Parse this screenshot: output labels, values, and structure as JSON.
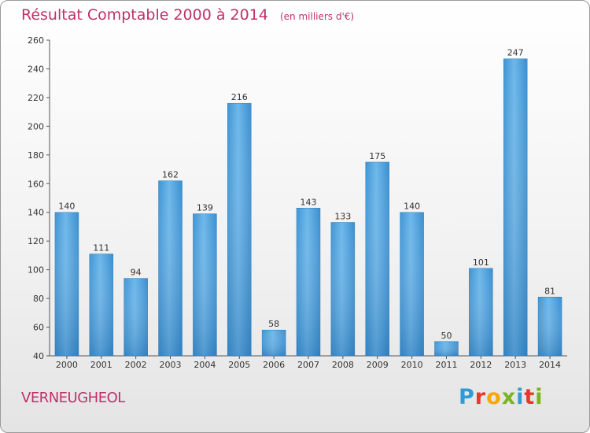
{
  "header": {
    "title": "Résultat Comptable 2000 à 2014",
    "subtitle": "(en milliers d'€)"
  },
  "footer": {
    "commune": "VERNEUGHEOL",
    "logo": "Proxiti",
    "logo_letters": [
      "P",
      "r",
      "o",
      "x",
      "i",
      "t",
      "i"
    ],
    "logo_colors": [
      "#2f9bd6",
      "#e8372c",
      "#f6a800",
      "#7ab51d",
      "#2f9bd6",
      "#e8372c",
      "#7ab51d"
    ]
  },
  "chart_data": {
    "type": "bar",
    "title": "Résultat Comptable 2000 à 2014",
    "subtitle": "(en milliers d'€)",
    "xlabel": "",
    "ylabel": "",
    "categories": [
      "2000",
      "2001",
      "2002",
      "2003",
      "2004",
      "2005",
      "2006",
      "2007",
      "2008",
      "2009",
      "2010",
      "2011",
      "2012",
      "2013",
      "2014"
    ],
    "values": [
      140,
      111,
      94,
      162,
      139,
      216,
      58,
      143,
      133,
      175,
      140,
      50,
      101,
      247,
      81
    ],
    "ylim": [
      40,
      260
    ],
    "yticks": [
      40,
      60,
      80,
      100,
      120,
      140,
      160,
      180,
      200,
      220,
      240,
      260
    ],
    "grid": false,
    "bar_color": "#4da3df",
    "axis_text_color": "#333333"
  }
}
